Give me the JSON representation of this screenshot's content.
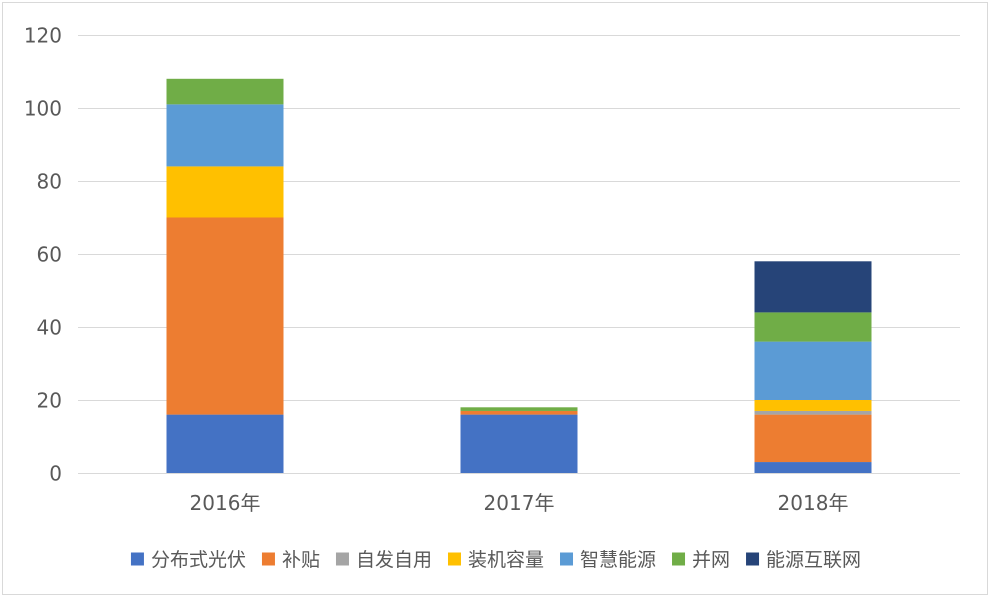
{
  "chart_data": {
    "type": "bar",
    "stacked": true,
    "title": "",
    "xlabel": "",
    "ylabel": "",
    "ylim": [
      0,
      120
    ],
    "yticks": [
      0,
      20,
      40,
      60,
      80,
      100,
      120
    ],
    "grid": true,
    "legend_position": "bottom",
    "categories": [
      "2016年",
      "2017年",
      "2018年"
    ],
    "series": [
      {
        "name": "分布式光伏",
        "color": "#4472c4",
        "values": [
          16,
          16,
          3
        ]
      },
      {
        "name": "补贴",
        "color": "#ed7d31",
        "values": [
          54,
          1,
          13
        ]
      },
      {
        "name": "自发自用",
        "color": "#a5a5a5",
        "values": [
          0,
          0,
          1
        ]
      },
      {
        "name": "装机容量",
        "color": "#ffc000",
        "values": [
          14,
          0,
          3
        ]
      },
      {
        "name": "智慧能源",
        "color": "#5b9bd5",
        "values": [
          17,
          0,
          16
        ]
      },
      {
        "name": "并网",
        "color": "#70ad47",
        "values": [
          7,
          1,
          8
        ]
      },
      {
        "name": "能源互联网",
        "color": "#264478",
        "values": [
          0,
          0,
          14
        ]
      }
    ]
  }
}
